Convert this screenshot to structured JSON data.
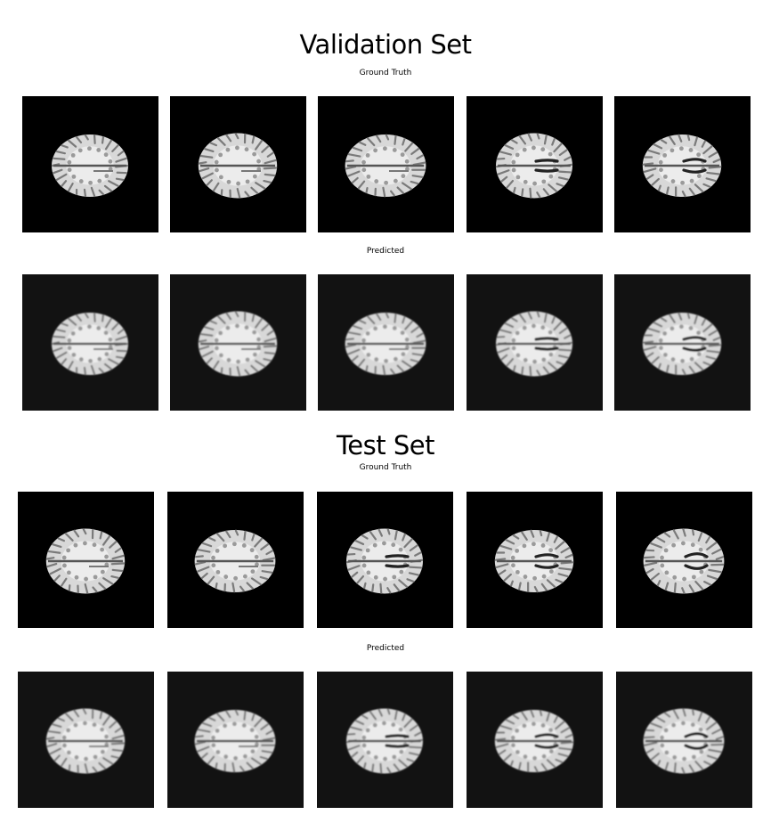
{
  "sections": [
    {
      "title": "Validation Set",
      "rows": [
        {
          "label": "Ground Truth",
          "kind": "gt",
          "count": 5
        },
        {
          "label": "Predicted",
          "kind": "pred",
          "count": 5
        }
      ]
    },
    {
      "title": "Test Set",
      "rows": [
        {
          "label": "Ground Truth",
          "kind": "gt",
          "count": 5
        },
        {
          "label": "Predicted",
          "kind": "pred",
          "count": 5
        }
      ]
    }
  ],
  "colors": {
    "ground_truth_background": "#000000",
    "predicted_background": "#121212",
    "brain_tissue": "#d8d8d8",
    "brain_sulci": "#7a7a7a"
  },
  "image_content": "axial-brain-mri-slice"
}
